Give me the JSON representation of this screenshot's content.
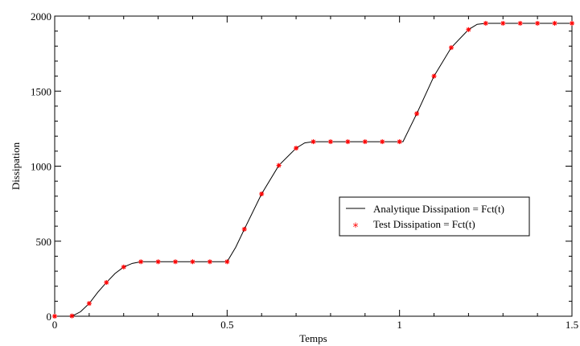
{
  "chart_data": {
    "type": "line",
    "title": "",
    "xlabel": "Temps",
    "ylabel": "Dissipation",
    "xlim": [
      0,
      1.5
    ],
    "ylim": [
      0,
      2000
    ],
    "x_ticks": [
      0,
      0.5,
      1,
      1.5
    ],
    "x_tick_labels": [
      "0",
      "0.5",
      "1",
      "1.5"
    ],
    "y_ticks": [
      0,
      500,
      1000,
      1500,
      2000
    ],
    "y_tick_labels": [
      "0",
      "500",
      "1000",
      "1500",
      "2000"
    ],
    "grid": false,
    "legend_position": "center-right",
    "colors": {
      "line": "#000000",
      "marker": "#ff0000"
    },
    "series": [
      {
        "name": "Analytique Dissipation = Fct(t)",
        "kind": "line",
        "x": [
          0,
          0.05,
          0.075,
          0.1,
          0.125,
          0.15,
          0.175,
          0.2,
          0.225,
          0.25,
          0.5,
          0.525,
          0.55,
          0.6,
          0.65,
          0.7,
          0.725,
          0.75,
          1.01,
          1.05,
          1.1,
          1.15,
          1.2,
          1.225,
          1.25,
          1.5
        ],
        "y": [
          0,
          0,
          30,
          85,
          160,
          225,
          285,
          328,
          352,
          363,
          363,
          460,
          580,
          815,
          1005,
          1120,
          1155,
          1163,
          1163,
          1350,
          1600,
          1790,
          1910,
          1945,
          1952,
          1952
        ]
      },
      {
        "name": "Test Dissipation = Fct(t)",
        "kind": "scatter",
        "x": [
          0,
          0.05,
          0.1,
          0.15,
          0.2,
          0.25,
          0.3,
          0.35,
          0.4,
          0.45,
          0.5,
          0.55,
          0.6,
          0.65,
          0.7,
          0.75,
          0.8,
          0.85,
          0.9,
          0.95,
          1.0,
          1.05,
          1.1,
          1.15,
          1.2,
          1.25,
          1.3,
          1.35,
          1.4,
          1.45,
          1.5
        ],
        "y": [
          0,
          2,
          85,
          225,
          328,
          363,
          363,
          363,
          363,
          363,
          363,
          580,
          815,
          1005,
          1120,
          1163,
          1163,
          1163,
          1163,
          1163,
          1163,
          1350,
          1600,
          1790,
          1910,
          1952,
          1952,
          1952,
          1952,
          1952,
          1952
        ]
      }
    ]
  }
}
